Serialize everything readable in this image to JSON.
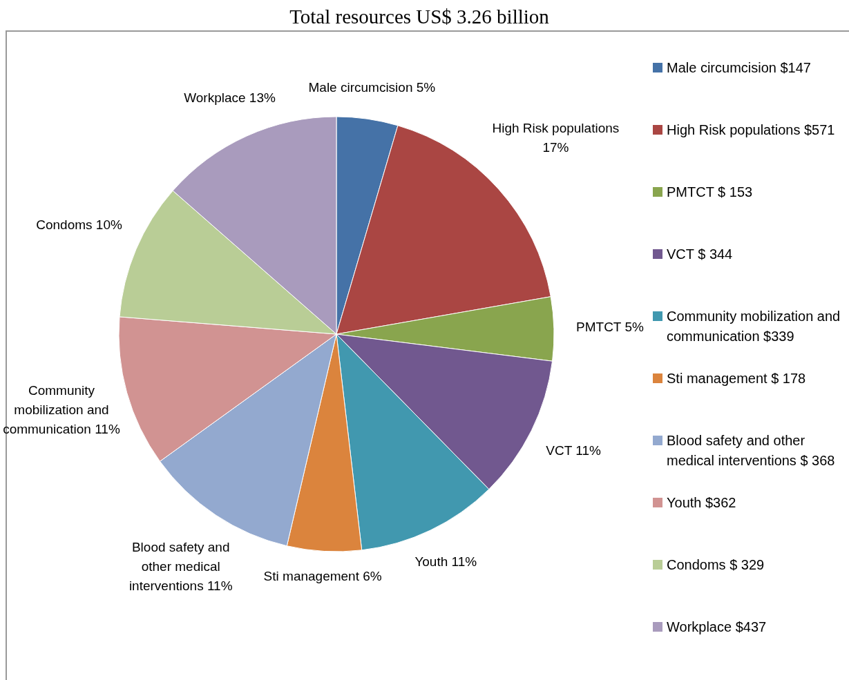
{
  "chart_data": {
    "type": "pie",
    "title": "Total resources US$ 3.26 billion",
    "categories": [
      "Male circumcision $147",
      "High Risk populations $571",
      "PMTCT $ 153",
      "VCT $ 344",
      "Community mobilization and communication $339",
      "Sti management $ 178",
      "Blood safety and other medical interventions $ 368",
      "Youth $362",
      "Condoms $ 329",
      "Workplace $437"
    ],
    "values": [
      147,
      571,
      153,
      344,
      339,
      178,
      368,
      362,
      329,
      437
    ],
    "colors": [
      "#4572a7",
      "#aa4643",
      "#89a54e",
      "#71588f",
      "#4198af",
      "#db843d",
      "#93a9cf",
      "#d19392",
      "#b9cd96",
      "#a99bbd"
    ],
    "value_labels": [
      "Male circumcision 5%",
      "High Risk populations 17%",
      "PMTCT 5%",
      "VCT 11%",
      "Youth 11%",
      "Sti management 6%",
      "Blood safety and other medical interventions 11%",
      "Community mobilization and communication 11%",
      "Condoms 10%",
      "Workplace 13%"
    ],
    "legend": "right"
  }
}
